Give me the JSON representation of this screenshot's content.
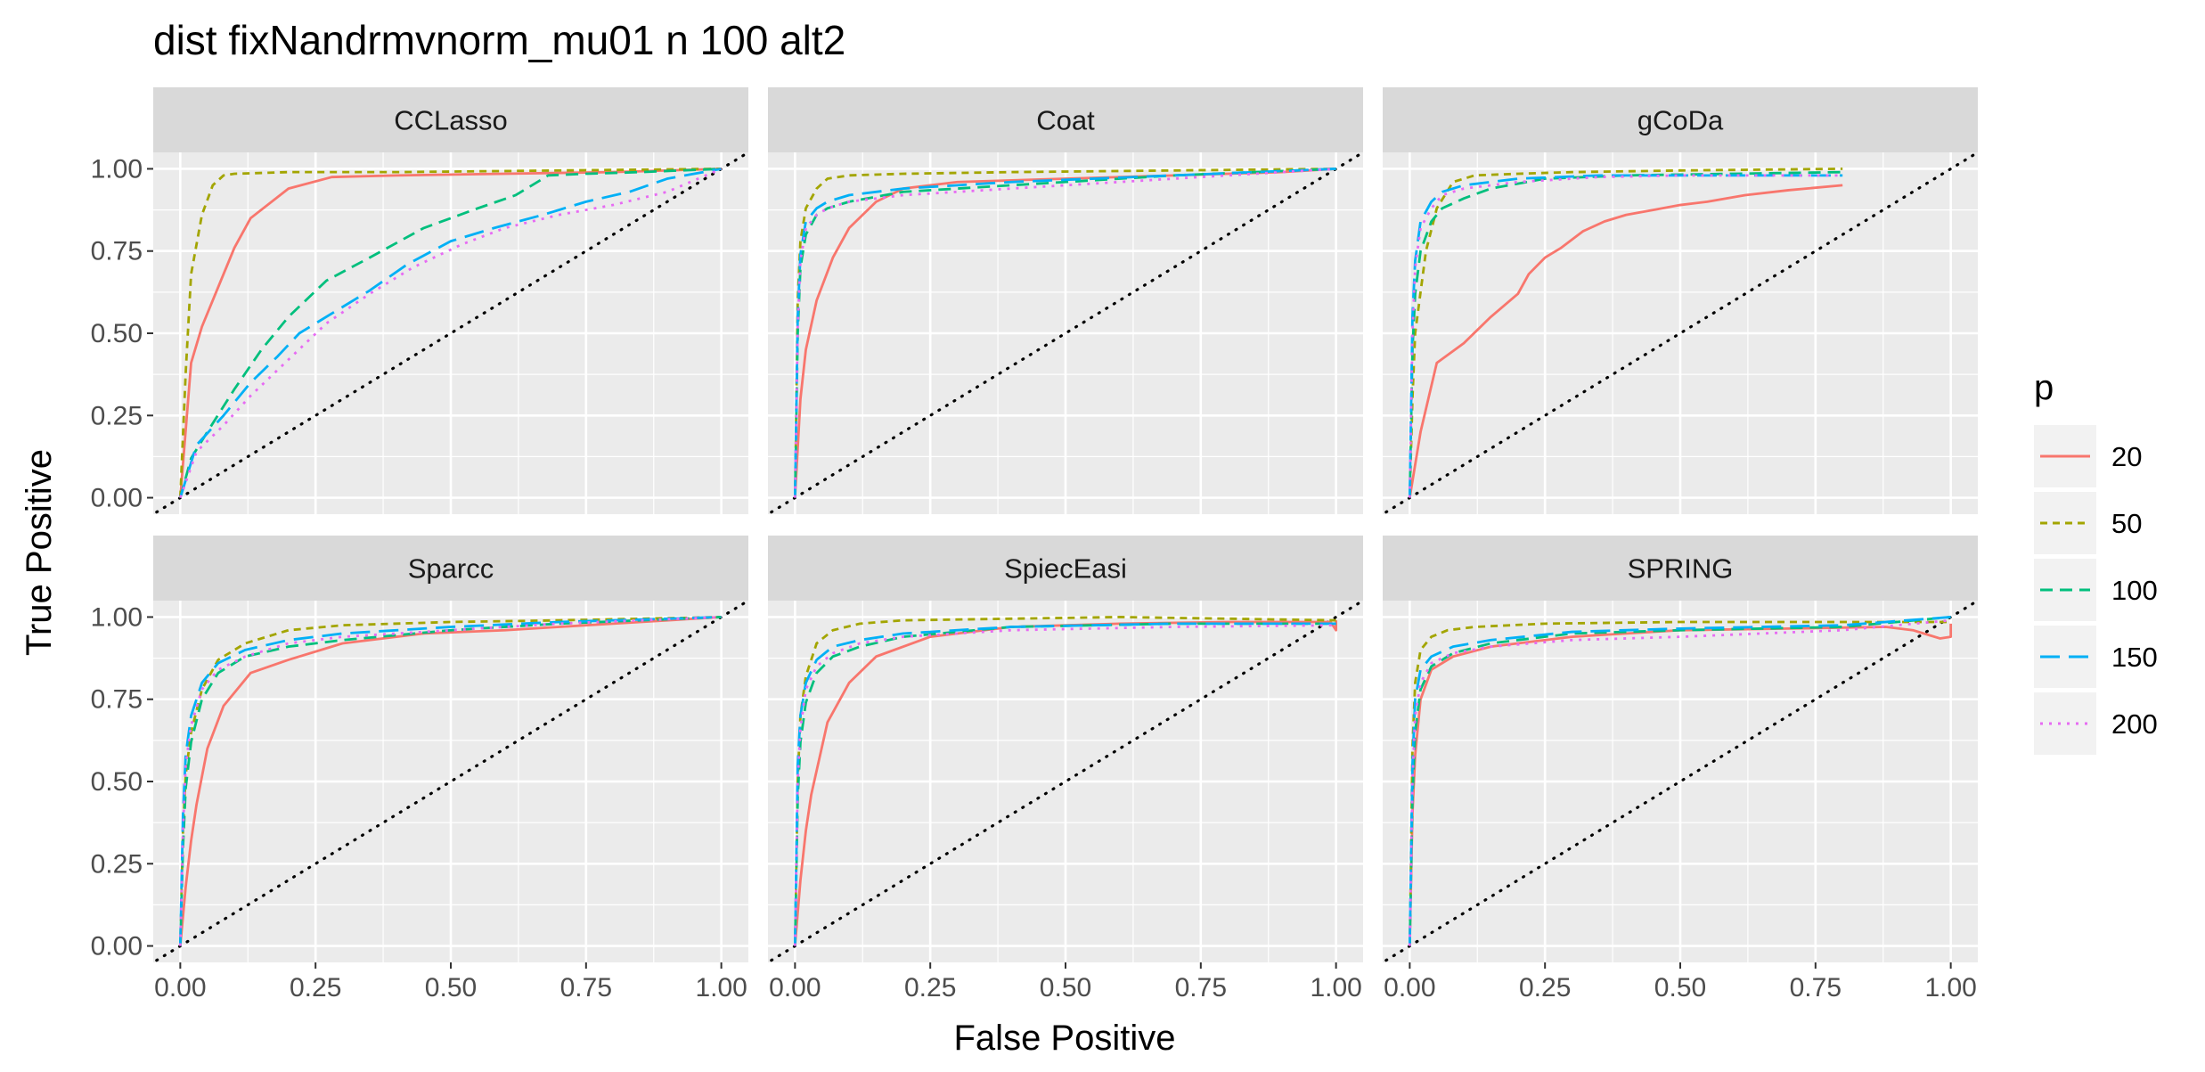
{
  "chart_data": {
    "type": "line",
    "title": "dist fixNandrmvnorm_mu01 n 100 alt2",
    "xlabel": "False Positive",
    "ylabel": "True Positive",
    "xlim": [
      0,
      1
    ],
    "ylim": [
      0,
      1
    ],
    "xticks": [
      "0.00",
      "0.25",
      "0.50",
      "0.75",
      "1.00"
    ],
    "yticks": [
      "0.00",
      "0.25",
      "0.50",
      "0.75",
      "1.00"
    ],
    "grid": true,
    "facet_layout": "2 rows x 3 columns",
    "reference_line": "dotted diagonal y = x",
    "legend": {
      "title": "p",
      "position": "right",
      "entries": [
        {
          "label": "20",
          "color": "#F8766D",
          "dash": "solid"
        },
        {
          "label": "50",
          "color": "#A3A500",
          "dash": "short-dash"
        },
        {
          "label": "100",
          "color": "#00BF7D",
          "dash": "dash"
        },
        {
          "label": "150",
          "color": "#00B0F6",
          "dash": "long-dash"
        },
        {
          "label": "200",
          "color": "#E76BF3",
          "dash": "dotted"
        }
      ]
    },
    "panels": [
      {
        "name": "CCLasso",
        "series": [
          {
            "name": "20",
            "x": [
              0,
              0.02,
              0.04,
              0.07,
              0.1,
              0.13,
              0.2,
              0.28,
              0.4,
              0.6,
              0.8,
              1.0
            ],
            "y": [
              0,
              0.41,
              0.52,
              0.64,
              0.76,
              0.85,
              0.94,
              0.975,
              0.98,
              0.985,
              0.99,
              1.0
            ]
          },
          {
            "name": "50",
            "x": [
              0,
              0.01,
              0.02,
              0.04,
              0.06,
              0.08,
              0.1,
              0.2,
              0.4,
              1.0
            ],
            "y": [
              0,
              0.38,
              0.68,
              0.86,
              0.95,
              0.98,
              0.985,
              0.99,
              0.99,
              1.0
            ]
          },
          {
            "name": "100",
            "x": [
              0,
              0.02,
              0.05,
              0.1,
              0.15,
              0.2,
              0.27,
              0.35,
              0.45,
              0.55,
              0.62,
              0.68,
              0.75,
              0.85,
              1.0
            ],
            "y": [
              0,
              0.12,
              0.2,
              0.33,
              0.45,
              0.55,
              0.66,
              0.73,
              0.82,
              0.88,
              0.92,
              0.98,
              0.985,
              0.99,
              1.0
            ]
          },
          {
            "name": "150",
            "x": [
              0,
              0.03,
              0.08,
              0.13,
              0.18,
              0.22,
              0.28,
              0.35,
              0.42,
              0.5,
              0.58,
              0.67,
              0.75,
              0.83,
              0.9,
              1.0
            ],
            "y": [
              0,
              0.16,
              0.25,
              0.35,
              0.43,
              0.5,
              0.56,
              0.63,
              0.71,
              0.78,
              0.82,
              0.86,
              0.9,
              0.93,
              0.97,
              1.0
            ]
          },
          {
            "name": "200",
            "x": [
              0,
              0.03,
              0.08,
              0.13,
              0.2,
              0.27,
              0.35,
              0.43,
              0.52,
              0.6,
              0.7,
              0.8,
              0.9,
              1.0
            ],
            "y": [
              0,
              0.14,
              0.22,
              0.31,
              0.42,
              0.53,
              0.62,
              0.7,
              0.77,
              0.82,
              0.86,
              0.89,
              0.93,
              1.0
            ]
          }
        ]
      },
      {
        "name": "Coat",
        "series": [
          {
            "name": "20",
            "x": [
              0,
              0.01,
              0.02,
              0.04,
              0.07,
              0.1,
              0.15,
              0.2,
              0.3,
              0.5,
              0.7,
              0.9,
              1.0
            ],
            "y": [
              0,
              0.3,
              0.45,
              0.6,
              0.73,
              0.82,
              0.9,
              0.94,
              0.96,
              0.97,
              0.98,
              0.99,
              1.0
            ]
          },
          {
            "name": "50",
            "x": [
              0,
              0.005,
              0.01,
              0.02,
              0.04,
              0.06,
              0.1,
              0.2,
              0.4,
              0.7,
              1.0
            ],
            "y": [
              0,
              0.6,
              0.78,
              0.88,
              0.94,
              0.97,
              0.98,
              0.985,
              0.99,
              0.995,
              1.0
            ]
          },
          {
            "name": "100",
            "x": [
              0,
              0.005,
              0.01,
              0.02,
              0.04,
              0.06,
              0.1,
              0.2,
              0.4,
              0.7,
              1.0
            ],
            "y": [
              0,
              0.5,
              0.7,
              0.8,
              0.86,
              0.88,
              0.9,
              0.93,
              0.95,
              0.98,
              1.0
            ]
          },
          {
            "name": "150",
            "x": [
              0,
              0.005,
              0.01,
              0.02,
              0.04,
              0.06,
              0.1,
              0.2,
              0.4,
              0.7,
              1.0
            ],
            "y": [
              0,
              0.55,
              0.74,
              0.84,
              0.88,
              0.9,
              0.92,
              0.94,
              0.96,
              0.98,
              1.0
            ]
          },
          {
            "name": "200",
            "x": [
              0,
              0.005,
              0.01,
              0.02,
              0.04,
              0.06,
              0.1,
              0.2,
              0.4,
              0.7,
              1.0
            ],
            "y": [
              0,
              0.52,
              0.72,
              0.82,
              0.86,
              0.88,
              0.9,
              0.92,
              0.94,
              0.97,
              1.0
            ]
          }
        ]
      },
      {
        "name": "gCoDa",
        "series": [
          {
            "name": "20",
            "x": [
              0,
              0.02,
              0.05,
              0.1,
              0.15,
              0.2,
              0.22,
              0.25,
              0.28,
              0.32,
              0.36,
              0.4,
              0.45,
              0.5,
              0.55,
              0.62,
              0.7,
              0.8
            ],
            "y": [
              0,
              0.2,
              0.41,
              0.47,
              0.55,
              0.62,
              0.68,
              0.73,
              0.76,
              0.81,
              0.84,
              0.86,
              0.875,
              0.89,
              0.9,
              0.92,
              0.935,
              0.95
            ]
          },
          {
            "name": "50",
            "x": [
              0,
              0.005,
              0.01,
              0.03,
              0.05,
              0.08,
              0.12,
              0.2,
              0.3,
              0.5,
              0.8
            ],
            "y": [
              0,
              0.3,
              0.5,
              0.75,
              0.88,
              0.96,
              0.98,
              0.985,
              0.99,
              0.995,
              1.0
            ]
          },
          {
            "name": "100",
            "x": [
              0,
              0.005,
              0.01,
              0.02,
              0.04,
              0.06,
              0.1,
              0.15,
              0.25,
              0.4,
              0.6,
              0.8
            ],
            "y": [
              0,
              0.45,
              0.62,
              0.75,
              0.84,
              0.88,
              0.91,
              0.94,
              0.97,
              0.98,
              0.985,
              0.99
            ]
          },
          {
            "name": "150",
            "x": [
              0,
              0.005,
              0.01,
              0.02,
              0.04,
              0.06,
              0.1,
              0.2,
              0.35,
              0.5,
              0.8
            ],
            "y": [
              0,
              0.55,
              0.72,
              0.84,
              0.9,
              0.93,
              0.95,
              0.97,
              0.98,
              0.98,
              0.98
            ]
          },
          {
            "name": "200",
            "x": [
              0,
              0.005,
              0.01,
              0.02,
              0.04,
              0.06,
              0.1,
              0.2,
              0.35,
              0.5,
              0.8
            ],
            "y": [
              0,
              0.5,
              0.7,
              0.82,
              0.88,
              0.92,
              0.94,
              0.96,
              0.975,
              0.98,
              0.98
            ]
          }
        ]
      },
      {
        "name": "Sparcc",
        "series": [
          {
            "name": "20",
            "x": [
              0,
              0.01,
              0.02,
              0.03,
              0.05,
              0.08,
              0.13,
              0.2,
              0.3,
              0.45,
              0.6,
              0.8,
              1.0
            ],
            "y": [
              0,
              0.18,
              0.32,
              0.43,
              0.6,
              0.73,
              0.83,
              0.87,
              0.92,
              0.95,
              0.96,
              0.98,
              1.0
            ]
          },
          {
            "name": "50",
            "x": [
              0,
              0.005,
              0.01,
              0.02,
              0.04,
              0.07,
              0.12,
              0.2,
              0.3,
              0.5,
              0.7,
              1.0
            ],
            "y": [
              0,
              0.35,
              0.52,
              0.65,
              0.78,
              0.87,
              0.92,
              0.96,
              0.975,
              0.985,
              0.99,
              1.0
            ]
          },
          {
            "name": "100",
            "x": [
              0,
              0.005,
              0.01,
              0.02,
              0.04,
              0.07,
              0.12,
              0.2,
              0.3,
              0.5,
              0.7,
              1.0
            ],
            "y": [
              0,
              0.3,
              0.48,
              0.62,
              0.75,
              0.83,
              0.88,
              0.91,
              0.93,
              0.96,
              0.98,
              1.0
            ]
          },
          {
            "name": "150",
            "x": [
              0,
              0.005,
              0.01,
              0.02,
              0.04,
              0.07,
              0.12,
              0.2,
              0.3,
              0.5,
              0.7,
              1.0
            ],
            "y": [
              0,
              0.4,
              0.58,
              0.7,
              0.8,
              0.86,
              0.9,
              0.93,
              0.95,
              0.97,
              0.985,
              1.0
            ]
          },
          {
            "name": "200",
            "x": [
              0,
              0.005,
              0.01,
              0.02,
              0.04,
              0.07,
              0.12,
              0.2,
              0.3,
              0.5,
              0.7,
              1.0
            ],
            "y": [
              0,
              0.35,
              0.55,
              0.67,
              0.78,
              0.84,
              0.88,
              0.92,
              0.94,
              0.96,
              0.98,
              1.0
            ]
          }
        ]
      },
      {
        "name": "SpiecEasi",
        "series": [
          {
            "name": "20",
            "x": [
              0,
              0.01,
              0.02,
              0.03,
              0.06,
              0.1,
              0.15,
              0.25,
              0.4,
              0.6,
              0.8,
              0.95,
              0.99,
              1.0,
              1.0
            ],
            "y": [
              0,
              0.2,
              0.35,
              0.46,
              0.68,
              0.8,
              0.88,
              0.94,
              0.97,
              0.98,
              0.985,
              0.985,
              0.985,
              0.96,
              0.99
            ]
          },
          {
            "name": "50",
            "x": [
              0,
              0.005,
              0.01,
              0.02,
              0.04,
              0.07,
              0.12,
              0.2,
              0.4,
              0.6,
              0.8,
              1.0
            ],
            "y": [
              0,
              0.5,
              0.7,
              0.82,
              0.92,
              0.96,
              0.98,
              0.99,
              0.995,
              1.0,
              0.995,
              0.99
            ]
          },
          {
            "name": "100",
            "x": [
              0,
              0.005,
              0.01,
              0.02,
              0.04,
              0.07,
              0.12,
              0.2,
              0.4,
              0.7,
              1.0
            ],
            "y": [
              0,
              0.45,
              0.62,
              0.74,
              0.83,
              0.88,
              0.91,
              0.94,
              0.97,
              0.98,
              0.98
            ]
          },
          {
            "name": "150",
            "x": [
              0,
              0.005,
              0.01,
              0.02,
              0.04,
              0.07,
              0.12,
              0.2,
              0.4,
              0.7,
              1.0
            ],
            "y": [
              0,
              0.55,
              0.7,
              0.8,
              0.87,
              0.91,
              0.93,
              0.95,
              0.97,
              0.98,
              0.98
            ]
          },
          {
            "name": "200",
            "x": [
              0,
              0.005,
              0.01,
              0.02,
              0.04,
              0.07,
              0.12,
              0.2,
              0.4,
              0.7,
              1.0
            ],
            "y": [
              0,
              0.5,
              0.66,
              0.78,
              0.85,
              0.89,
              0.92,
              0.94,
              0.96,
              0.97,
              0.975
            ]
          }
        ]
      },
      {
        "name": "SPRING",
        "series": [
          {
            "name": "20",
            "x": [
              0,
              0.005,
              0.01,
              0.02,
              0.04,
              0.08,
              0.15,
              0.3,
              0.5,
              0.7,
              0.88,
              0.93,
              0.96,
              0.98,
              1.0,
              1.0
            ],
            "y": [
              0,
              0.4,
              0.58,
              0.75,
              0.84,
              0.88,
              0.91,
              0.94,
              0.96,
              0.965,
              0.97,
              0.96,
              0.945,
              0.935,
              0.94,
              0.98
            ]
          },
          {
            "name": "50",
            "x": [
              0,
              0.005,
              0.01,
              0.02,
              0.04,
              0.07,
              0.12,
              0.25,
              0.5,
              0.75,
              1.0
            ],
            "y": [
              0,
              0.6,
              0.8,
              0.9,
              0.94,
              0.96,
              0.97,
              0.98,
              0.985,
              0.985,
              0.985
            ]
          },
          {
            "name": "100",
            "x": [
              0,
              0.005,
              0.01,
              0.02,
              0.04,
              0.08,
              0.15,
              0.3,
              0.5,
              0.8,
              1.0
            ],
            "y": [
              0,
              0.45,
              0.65,
              0.78,
              0.85,
              0.89,
              0.92,
              0.95,
              0.96,
              0.97,
              1.0
            ]
          },
          {
            "name": "150",
            "x": [
              0,
              0.005,
              0.01,
              0.02,
              0.04,
              0.08,
              0.15,
              0.3,
              0.5,
              0.8,
              1.0
            ],
            "y": [
              0,
              0.55,
              0.75,
              0.84,
              0.88,
              0.91,
              0.93,
              0.955,
              0.965,
              0.975,
              1.0
            ]
          },
          {
            "name": "200",
            "x": [
              0,
              0.005,
              0.01,
              0.02,
              0.04,
              0.08,
              0.15,
              0.3,
              0.5,
              0.8,
              1.0
            ],
            "y": [
              0,
              0.5,
              0.7,
              0.8,
              0.86,
              0.89,
              0.91,
              0.93,
              0.94,
              0.96,
              0.99
            ]
          }
        ]
      }
    ]
  }
}
